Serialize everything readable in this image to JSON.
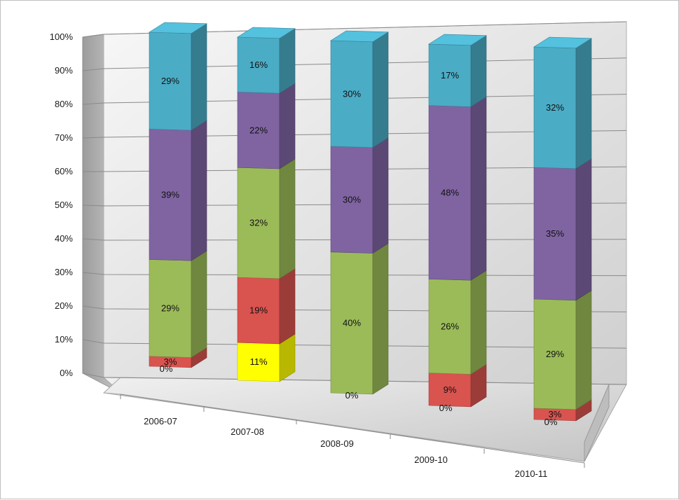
{
  "chart_data": {
    "type": "bar",
    "stacked": true,
    "percent_stacked": true,
    "three_d": true,
    "categories": [
      "2006-07",
      "2007-08",
      "2008-09",
      "2009-10",
      "2010-11"
    ],
    "series": [
      {
        "color": "#ffff00",
        "values": [
          0,
          11,
          0,
          0,
          0
        ],
        "labels": [
          "0%",
          "11%",
          "0%",
          "0%",
          "0%"
        ]
      },
      {
        "color": "#d9534f",
        "values": [
          3,
          19,
          0,
          9,
          3
        ],
        "labels": [
          "3%",
          "19%",
          "",
          "9%",
          "3%"
        ]
      },
      {
        "color": "#9bbb59",
        "values": [
          29,
          32,
          40,
          26,
          29
        ],
        "labels": [
          "29%",
          "32%",
          "40%",
          "26%",
          "29%"
        ]
      },
      {
        "color": "#8064a2",
        "values": [
          39,
          22,
          30,
          48,
          35
        ],
        "labels": [
          "39%",
          "22%",
          "30%",
          "48%",
          "35%"
        ]
      },
      {
        "color": "#4bacc6",
        "values": [
          29,
          16,
          30,
          17,
          32
        ],
        "labels": [
          "29%",
          "16%",
          "30%",
          "17%",
          "32%"
        ]
      }
    ],
    "yticks": [
      "0%",
      "10%",
      "20%",
      "30%",
      "40%",
      "50%",
      "60%",
      "70%",
      "80%",
      "90%",
      "100%"
    ],
    "ylim": [
      0,
      100
    ],
    "grid": true,
    "legend": "none",
    "title": "",
    "xlabel": "",
    "ylabel": ""
  }
}
